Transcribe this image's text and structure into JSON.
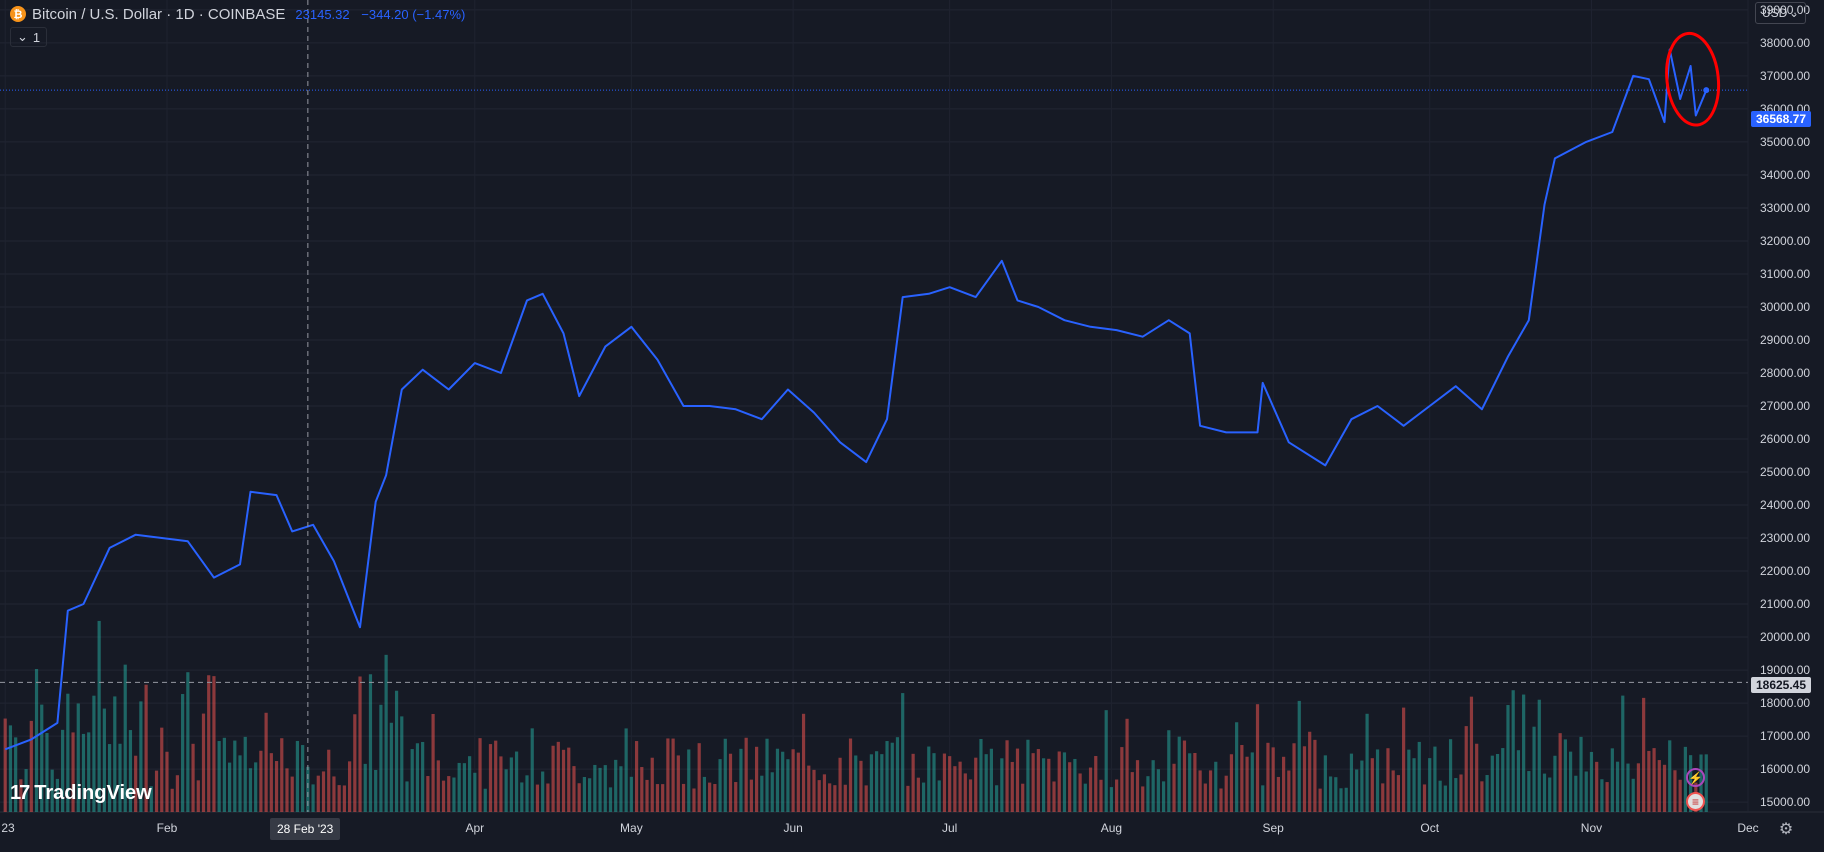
{
  "header": {
    "coin_glyph": "₿",
    "symbol": "Bitcoin / U.S. Dollar · 1D · COINBASE",
    "last": "23145.32",
    "change": "−344.20 (−1.47%)"
  },
  "indicator_badge": "1",
  "currency": "USD",
  "crosshair_date": "28 Feb '23",
  "price_badge": "36568.77",
  "crosshair_price": "18625.45",
  "logo": {
    "mark": "17",
    "text": "TradingView"
  },
  "icons": [
    "bolt-icon",
    "us-flag-icon",
    "gear-icon",
    "chevron-down-icon"
  ],
  "chart_data": {
    "type": "line",
    "series": [
      {
        "color": "#2962ff",
        "x": [
          "2023-01-01",
          "2023-01-06",
          "2023-01-11",
          "2023-01-13",
          "2023-01-16",
          "2023-01-21",
          "2023-01-26",
          "2023-01-31",
          "2023-02-05",
          "2023-02-10",
          "2023-02-15",
          "2023-02-17",
          "2023-02-22",
          "2023-02-25",
          "2023-03-01",
          "2023-03-05",
          "2023-03-10",
          "2023-03-13",
          "2023-03-15",
          "2023-03-18",
          "2023-03-22",
          "2023-03-27",
          "2023-04-01",
          "2023-04-06",
          "2023-04-11",
          "2023-04-14",
          "2023-04-18",
          "2023-04-21",
          "2023-04-26",
          "2023-05-01",
          "2023-05-06",
          "2023-05-11",
          "2023-05-16",
          "2023-05-21",
          "2023-05-26",
          "2023-05-31",
          "2023-06-05",
          "2023-06-10",
          "2023-06-15",
          "2023-06-19",
          "2023-06-22",
          "2023-06-27",
          "2023-07-01",
          "2023-07-06",
          "2023-07-11",
          "2023-07-14",
          "2023-07-18",
          "2023-07-23",
          "2023-07-28",
          "2023-08-02",
          "2023-08-07",
          "2023-08-12",
          "2023-08-16",
          "2023-08-18",
          "2023-08-23",
          "2023-08-29",
          "2023-08-30",
          "2023-09-04",
          "2023-09-11",
          "2023-09-16",
          "2023-09-21",
          "2023-09-26",
          "2023-10-01",
          "2023-10-06",
          "2023-10-11",
          "2023-10-16",
          "2023-10-20",
          "2023-10-23",
          "2023-10-25",
          "2023-10-31",
          "2023-11-05",
          "2023-11-09",
          "2023-11-12",
          "2023-11-15",
          "2023-11-16",
          "2023-11-18",
          "2023-11-20",
          "2023-11-21",
          "2023-11-23"
        ],
        "values": [
          16600,
          16900,
          17400,
          20800,
          21000,
          22700,
          23100,
          23000,
          22900,
          21800,
          22200,
          24400,
          24300,
          23200,
          23400,
          22300,
          20300,
          24100,
          24900,
          27500,
          28100,
          27500,
          28300,
          28000,
          30200,
          30400,
          29200,
          27300,
          28800,
          29400,
          28400,
          27000,
          27000,
          26900,
          26600,
          27500,
          26800,
          25900,
          25300,
          26600,
          30300,
          30400,
          30600,
          30300,
          31400,
          30200,
          30000,
          29600,
          29400,
          29300,
          29100,
          29600,
          29200,
          26400,
          26200,
          26200,
          27700,
          25900,
          25200,
          26600,
          27000,
          26400,
          27000,
          27600,
          26900,
          28500,
          29600,
          33100,
          34500,
          35000,
          35300,
          37000,
          36900,
          35600,
          37800,
          36300,
          37300,
          35800,
          36568
        ]
      }
    ],
    "volume": [
      {
        "range": [
          "2023-01-01",
          "2023-02-10"
        ],
        "peak_date": "2023-01-14",
        "peak_value": 19200
      },
      {
        "range": [
          "2023-03-05",
          "2023-03-18"
        ],
        "peak_date": "2023-03-15",
        "peak_value": 19000
      },
      {
        "range": [
          "2023-10-16",
          "2023-10-26"
        ],
        "peak_date": "2023-10-25",
        "peak_value": 18600
      }
    ],
    "price_axis": {
      "ticks": [
        "15000.00",
        "16000.00",
        "17000.00",
        "18000.00",
        "19000.00",
        "20000.00",
        "21000.00",
        "22000.00",
        "23000.00",
        "24000.00",
        "25000.00",
        "26000.00",
        "27000.00",
        "28000.00",
        "29000.00",
        "30000.00",
        "31000.00",
        "32000.00",
        "33000.00",
        "34000.00",
        "35000.00",
        "36000.00",
        "37000.00",
        "38000.00",
        "39000.00"
      ],
      "range": [
        14700,
        39300
      ]
    },
    "time_axis": {
      "ticks": [
        "23",
        "Feb",
        "Apr",
        "May",
        "Jun",
        "Jul",
        "Aug",
        "Sep",
        "Oct",
        "Nov",
        "Dec"
      ],
      "range": [
        "2022-12-31",
        "2023-12-01"
      ]
    },
    "annotation": {
      "type": "hand-drawn circle",
      "color": "#ff0000",
      "around": [
        "2023-11-17",
        "2023-11-23"
      ]
    },
    "grid": true
  }
}
